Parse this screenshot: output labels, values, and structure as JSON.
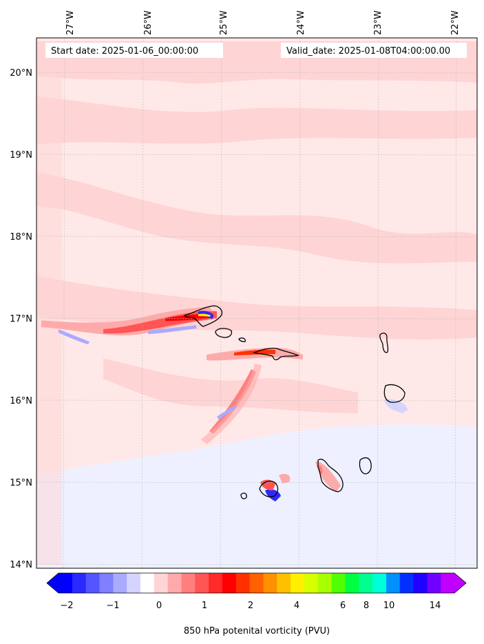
{
  "map": {
    "start_date_label": "Start date: 2025-01-06_00:00:00",
    "valid_date_label": "Valid_date: 2025-01-08T04:00:00.00",
    "lon_labels": [
      "27°W",
      "26°W",
      "25°W",
      "24°W",
      "23°W",
      "22°W"
    ],
    "lat_labels": [
      "20°N",
      "19°N",
      "18°N",
      "17°N",
      "16°N",
      "15°N",
      "14°N"
    ],
    "variable": "850 hPa potential vorticity",
    "units": "PVU"
  },
  "colorbar": {
    "label": "850 hPa potenital vorticity (PVU)",
    "tick_labels": [
      "−2",
      "−1",
      "0",
      "1",
      "2",
      "4",
      "6",
      "8",
      "10",
      "14"
    ],
    "colors": [
      "#0000ff",
      "#2a2aff",
      "#5555ff",
      "#7f7fff",
      "#aaaaff",
      "#d4d4ff",
      "#ffffff",
      "#ffd4d4",
      "#ffaaaa",
      "#ff7f7f",
      "#ff5555",
      "#ff2a2a",
      "#ff0000",
      "#ff3000",
      "#ff6000",
      "#ff9000",
      "#ffc000",
      "#fff000",
      "#d8ff00",
      "#a8ff00",
      "#50ff00",
      "#00ff40",
      "#00ff90",
      "#00ffd8",
      "#0090ff",
      "#0030ff",
      "#2000ff",
      "#7000ff",
      "#c000ff"
    ],
    "extend": "both"
  },
  "colors": {
    "background_pv": "#ffe8e8",
    "light_positive": "#ffd0d0",
    "weak_negative": "#eef0ff",
    "coastline": "#000000"
  }
}
